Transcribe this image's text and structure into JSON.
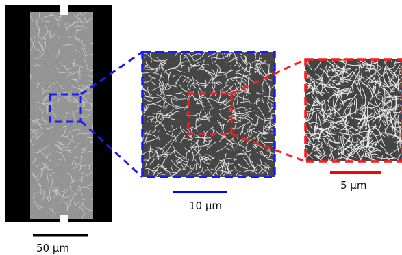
{
  "figure": {
    "panels": [
      {
        "name": "overview",
        "description_icon": "sem-micrograph"
      },
      {
        "name": "zoom-1",
        "description_icon": "sem-micrograph"
      },
      {
        "name": "zoom-2",
        "description_icon": "sem-micrograph"
      }
    ],
    "scale_bars": {
      "overview": {
        "label": "50 μm",
        "color": "#000000"
      },
      "zoom1": {
        "label": "10 μm",
        "color": "#0000ff"
      },
      "zoom2": {
        "label": "5 μm",
        "color": "#ff0000"
      }
    },
    "colors": {
      "zoom1_frame": "#1a1aff",
      "zoom2_frame": "#ff1a1a",
      "micrograph_dark": "#3a3a3a",
      "fiber": "#e8e8e8"
    }
  }
}
